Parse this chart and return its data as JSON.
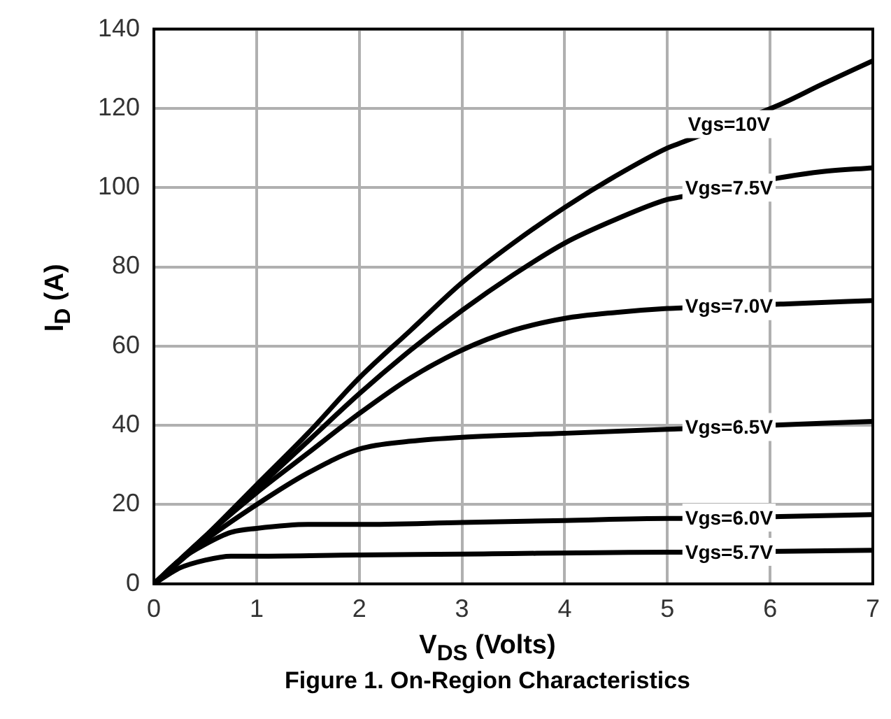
{
  "chart_data": {
    "type": "line",
    "xlabel": "V$_{DS}$ (Volts)",
    "ylabel": "I$_{D}$ (A)",
    "annotations": [
      "Figure 1. On-Region Characteristics"
    ],
    "xlim": [
      0,
      7
    ],
    "xticks": [
      0,
      1,
      2,
      3,
      4,
      5,
      6,
      7
    ],
    "ylim": [
      0,
      140
    ],
    "yticks": [
      0,
      20,
      40,
      60,
      80,
      100,
      120,
      140
    ],
    "grid": true,
    "legend": false,
    "marker": "none",
    "line_style": "solid",
    "series": [
      {
        "name": "Vgs=10V",
        "color": "#000000",
        "x": [
          0,
          0.5,
          1,
          1.5,
          2,
          2.5,
          3,
          3.5,
          4,
          4.5,
          5,
          5.1,
          6.1,
          6.5,
          7
        ],
        "values": [
          0,
          12,
          25,
          38,
          52,
          64,
          76,
          86,
          95,
          103,
          110,
          111,
          121,
          126,
          132
        ]
      },
      {
        "name": "Vgs=7.5V",
        "color": "#000000",
        "x": [
          0,
          0.5,
          1,
          1.5,
          2,
          2.5,
          3,
          3.5,
          4,
          4.5,
          5,
          5.1,
          6.1,
          6.5,
          7
        ],
        "values": [
          0,
          12,
          24,
          36,
          48,
          59,
          69,
          78,
          86,
          92,
          97,
          97.5,
          102.5,
          104,
          105
        ]
      },
      {
        "name": "Vgs=7.0V",
        "color": "#000000",
        "x": [
          0,
          0.5,
          1,
          1.5,
          2,
          2.5,
          3,
          3.5,
          4,
          4.5,
          5,
          5.1,
          6.1,
          6.5,
          7
        ],
        "values": [
          0,
          12,
          23,
          33,
          43,
          52,
          59,
          64,
          67,
          68.5,
          69.5,
          69.6,
          70.6,
          71,
          71.5
        ]
      },
      {
        "name": "Vgs=6.5V",
        "color": "#000000",
        "x": [
          0,
          0.5,
          1,
          1.5,
          2,
          2.5,
          3,
          4,
          5,
          5.1,
          6.1,
          7
        ],
        "values": [
          0,
          11,
          20,
          28,
          34,
          36,
          37,
          38,
          39,
          39.1,
          40.1,
          41
        ]
      },
      {
        "name": "Vgs=6.0V",
        "color": "#000000",
        "x": [
          0,
          0.25,
          0.5,
          0.75,
          1,
          1.5,
          2,
          3,
          4,
          5,
          5.1,
          6.1,
          7
        ],
        "values": [
          0,
          6,
          10,
          13,
          14,
          15,
          15,
          15.5,
          16,
          16.5,
          16.5,
          17,
          17.5
        ]
      },
      {
        "name": "Vgs=5.7V",
        "color": "#000000",
        "x": [
          0,
          0.25,
          0.5,
          0.75,
          1,
          2,
          3,
          5,
          5.1,
          6.1,
          7
        ],
        "values": [
          0,
          4,
          6,
          7,
          7,
          7.3,
          7.5,
          8,
          8,
          8.2,
          8.5
        ]
      }
    ]
  }
}
